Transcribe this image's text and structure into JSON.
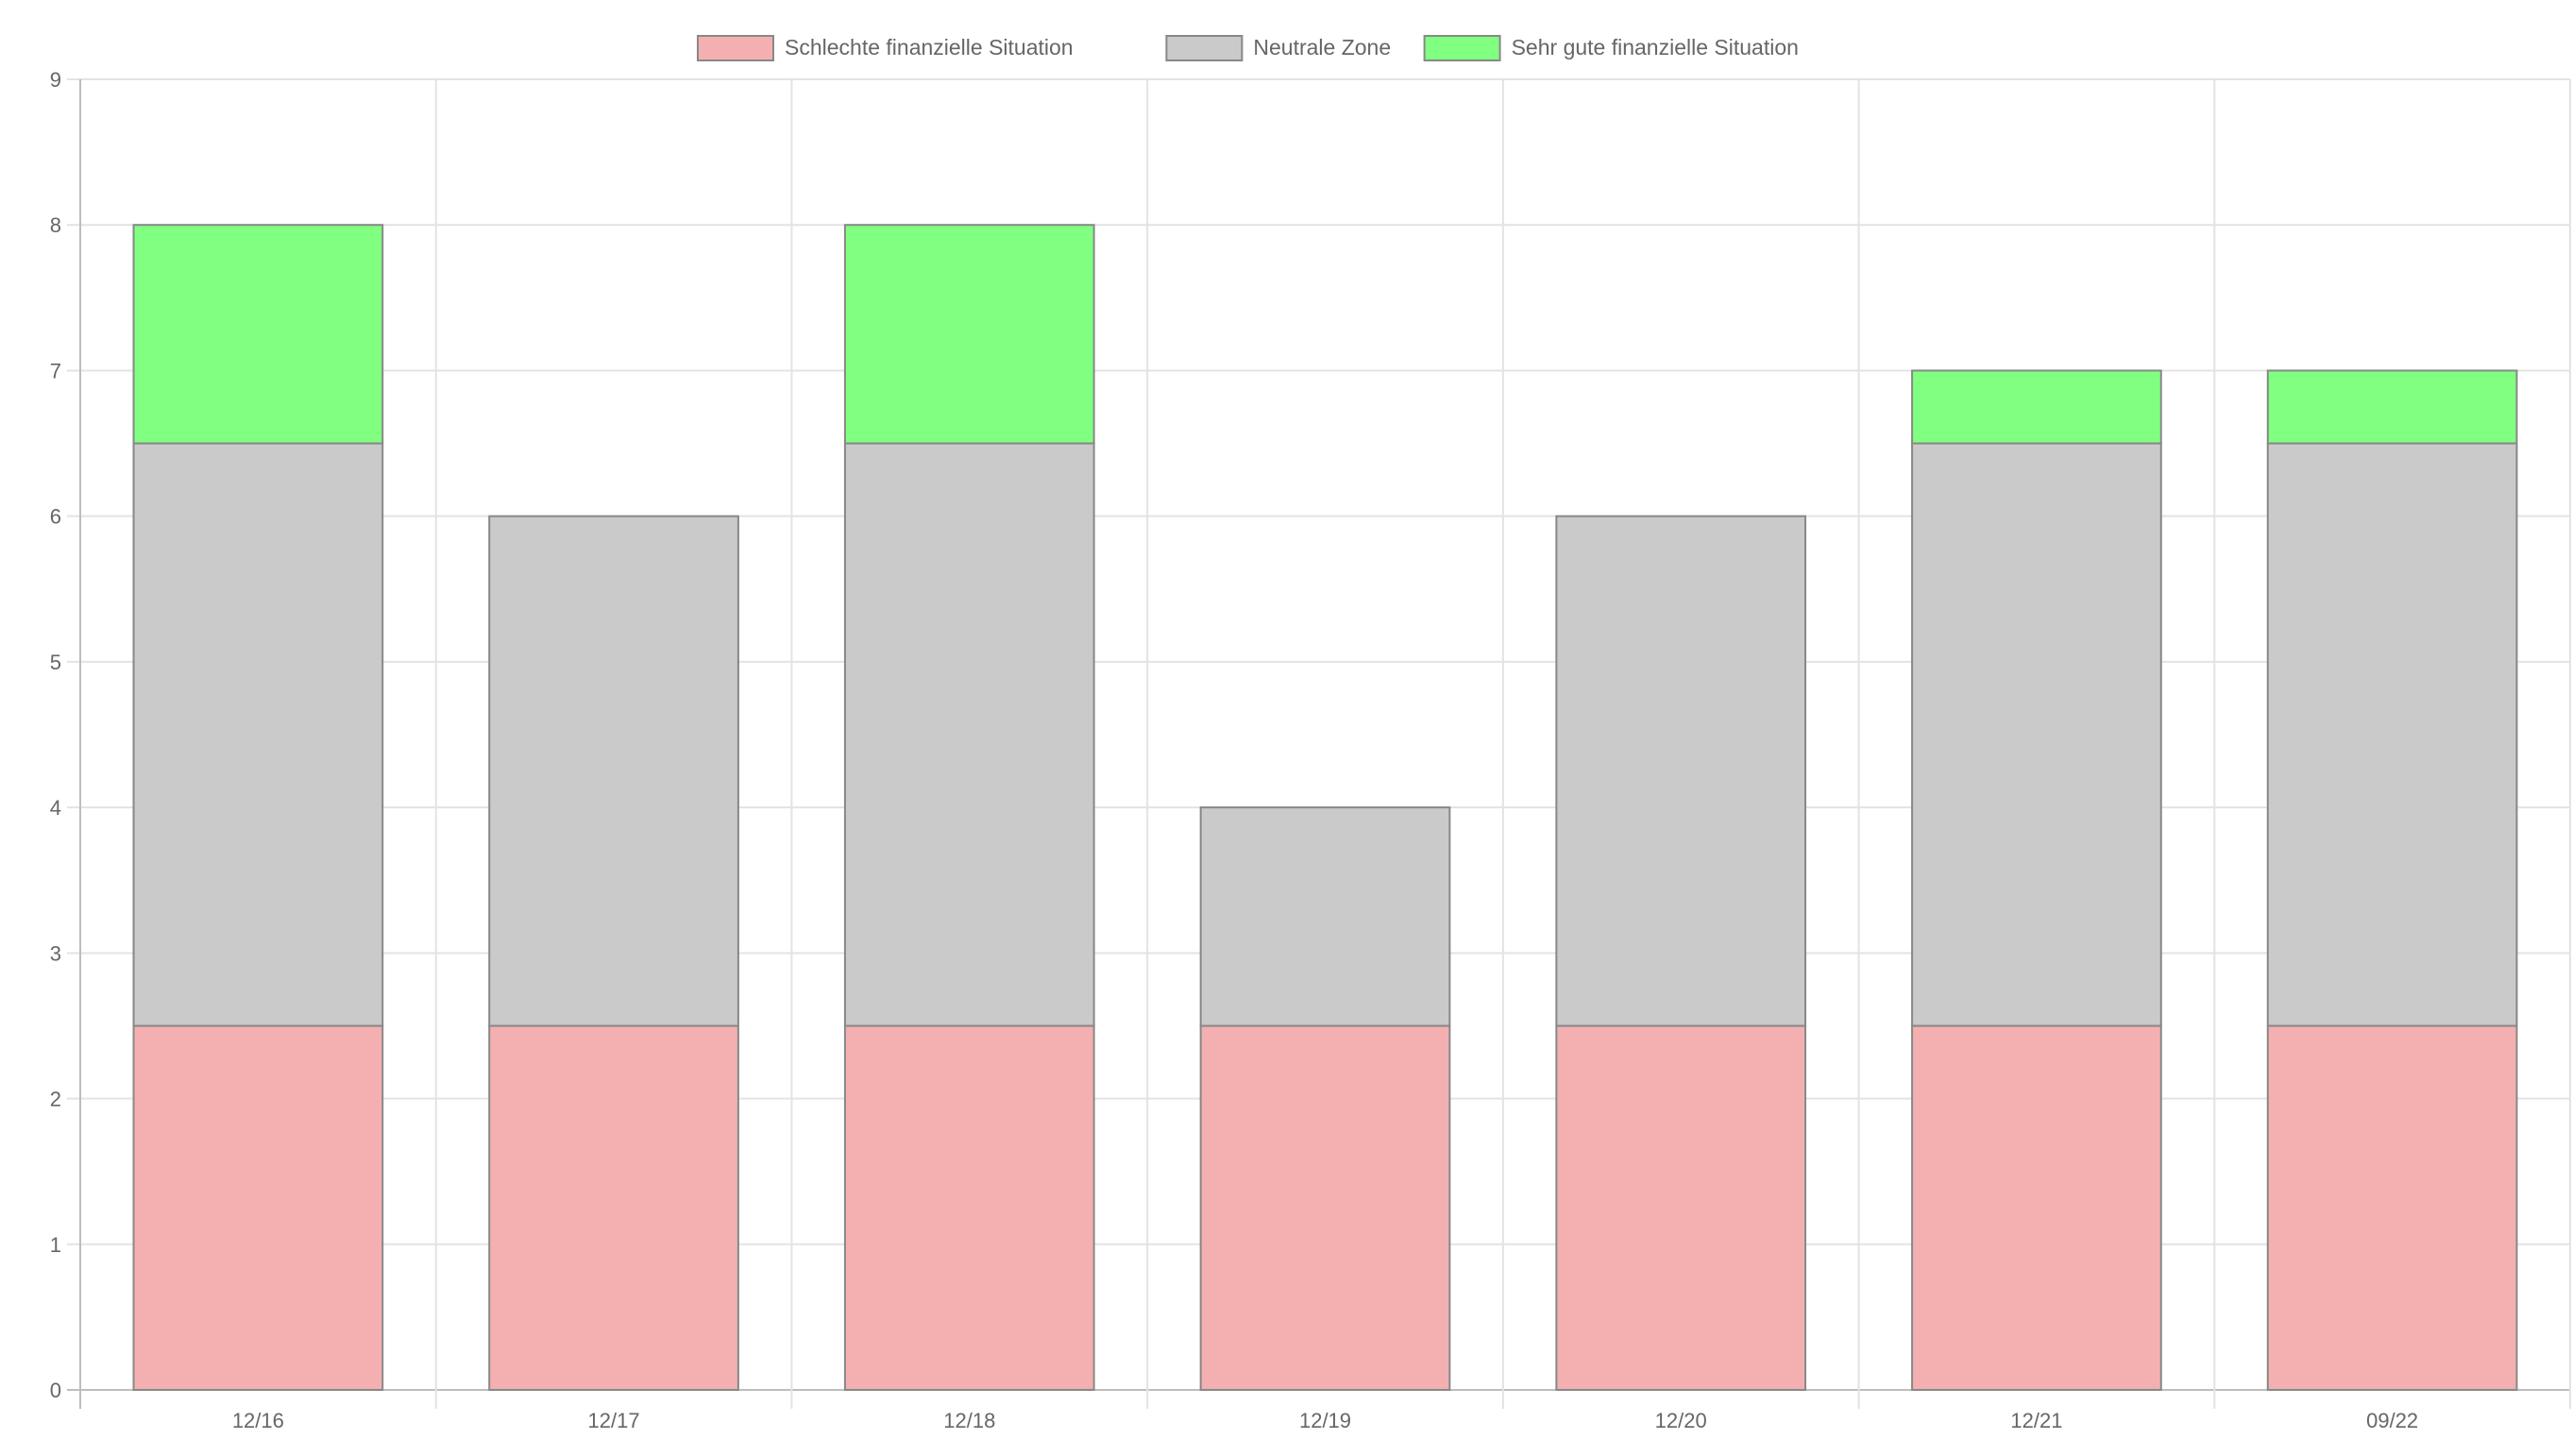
{
  "chart_data": {
    "type": "bar",
    "stacked": true,
    "categories": [
      "12/16",
      "12/17",
      "12/18",
      "12/19",
      "12/20",
      "12/21",
      "09/22"
    ],
    "series": [
      {
        "name": "Schlechte finanzielle Situation",
        "color": "#f4b0b0",
        "values": [
          2.5,
          2.5,
          2.5,
          2.5,
          2.5,
          2.5,
          2.5
        ]
      },
      {
        "name": "Neutrale Zone",
        "color": "#cacaca",
        "values": [
          4,
          3.5,
          4,
          1.5,
          3.5,
          4,
          4
        ]
      },
      {
        "name": "Sehr gute finanzielle Situation",
        "color": "#80ff80",
        "values": [
          1.5,
          0,
          1.5,
          0,
          0,
          0.5,
          0.5
        ]
      }
    ],
    "ylim": [
      0,
      9
    ],
    "yticks": [
      "0",
      "1",
      "2",
      "3",
      "4",
      "5",
      "6",
      "7",
      "8",
      "9"
    ],
    "grid": true,
    "legend_position": "top-center",
    "border_color": "#888888"
  }
}
